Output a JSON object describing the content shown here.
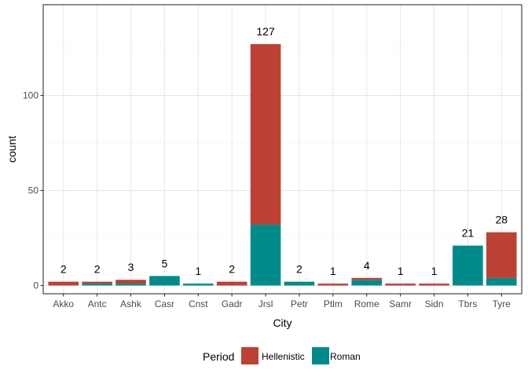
{
  "chart_data": {
    "type": "bar",
    "stacked": true,
    "title": "",
    "xlabel": "City",
    "ylabel": "count",
    "ylim": [
      0,
      145
    ],
    "yticks": [
      0,
      50,
      100
    ],
    "grid": true,
    "legend_placement": "bottom",
    "legend_title": "Period",
    "categories": [
      "Akko",
      "Antc",
      "Ashk",
      "Casr",
      "Cnst",
      "Gadr",
      "Jrsl",
      "Petr",
      "Ptlm",
      "Rome",
      "Samr",
      "Sidn",
      "Tbrs",
      "Tyre"
    ],
    "series": [
      {
        "name": "Hellenistic",
        "color": "#BD4034",
        "values": [
          2,
          1,
          2,
          0,
          0,
          2,
          95,
          0,
          1,
          1,
          1,
          1,
          0,
          24
        ]
      },
      {
        "name": "Roman",
        "color": "#008B8B",
        "values": [
          0,
          1,
          1,
          5,
          1,
          0,
          32,
          2,
          0,
          3,
          0,
          0,
          21,
          4
        ]
      }
    ],
    "totals": [
      2,
      2,
      3,
      5,
      1,
      2,
      127,
      2,
      1,
      4,
      1,
      1,
      21,
      28
    ]
  }
}
